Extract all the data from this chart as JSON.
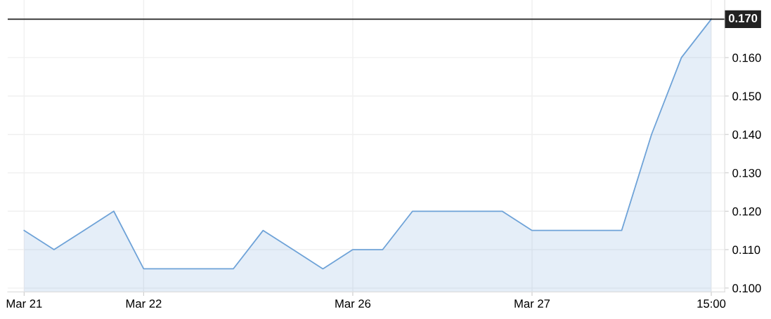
{
  "chart_data": {
    "type": "area",
    "categories": [
      "Mar 21",
      null,
      null,
      null,
      "Mar 22",
      null,
      null,
      null,
      null,
      null,
      null,
      "Mar 26",
      null,
      null,
      null,
      null,
      null,
      "Mar 27",
      null,
      null,
      null,
      null,
      null,
      "15:00"
    ],
    "series": [
      {
        "color": "#6fa3d8",
        "values": [
          0.115,
          0.11,
          0.115,
          0.12,
          0.105,
          0.105,
          0.105,
          0.105,
          0.115,
          0.11,
          0.105,
          0.11,
          0.11,
          0.12,
          0.12,
          0.12,
          0.12,
          0.115,
          0.115,
          0.115,
          0.115,
          0.14,
          0.16,
          0.17
        ]
      }
    ],
    "ylim": [
      0.099,
      0.175
    ],
    "yticks": [
      {
        "value": 0.1,
        "label": "0.100"
      },
      {
        "value": 0.11,
        "label": "0.110"
      },
      {
        "value": 0.12,
        "label": "0.120"
      },
      {
        "value": 0.13,
        "label": "0.130"
      },
      {
        "value": 0.14,
        "label": "0.140"
      },
      {
        "value": 0.15,
        "label": "0.150"
      },
      {
        "value": 0.16,
        "label": "0.160"
      }
    ],
    "ref_lines": [
      {
        "axis": "y",
        "value": 0.17,
        "label": "0.170",
        "color": "#222222"
      }
    ],
    "grid": true,
    "legend": false
  }
}
